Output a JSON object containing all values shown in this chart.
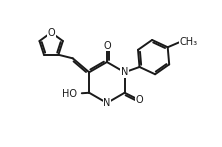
{
  "bg_color": "#ffffff",
  "line_color": "#1a1a1a",
  "line_width": 1.4,
  "doff": 0.011,
  "font_size": 7.0,
  "xlim": [
    0.0,
    1.12
  ],
  "ylim": [
    0.12,
    1.0
  ],
  "figsize": [
    2.22,
    1.47
  ],
  "dpi": 100
}
